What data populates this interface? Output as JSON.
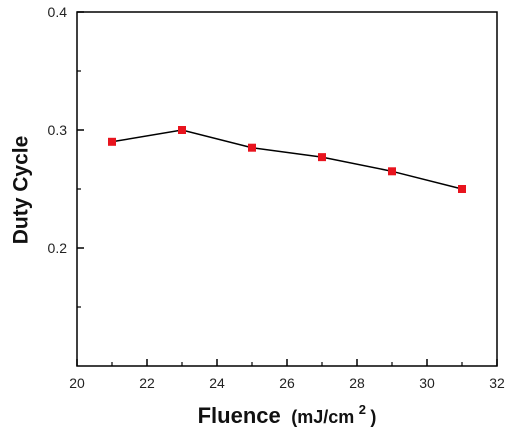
{
  "chart_data": {
    "type": "line",
    "title": "",
    "xlabel": "Fluence",
    "xlabel_unit": "(mJ/cm",
    "xlabel_unit_sup": "2",
    "xlabel_unit_close": ")",
    "ylabel": "Duty Cycle",
    "xlim": [
      20,
      32
    ],
    "ylim": [
      0.1,
      0.4
    ],
    "x_ticks": [
      20,
      22,
      24,
      26,
      28,
      30,
      32
    ],
    "x_tick_labels": [
      "20",
      "22",
      "24",
      "26",
      "28",
      "30",
      "32"
    ],
    "y_ticks": [
      0.2,
      0.3,
      0.4
    ],
    "y_tick_labels": [
      "0.2",
      "0.3",
      "0.4"
    ],
    "grid": false,
    "series": [
      {
        "x": [
          21,
          23,
          25,
          27,
          29,
          31
        ],
        "values": [
          0.29,
          0.3,
          0.285,
          0.277,
          0.265,
          0.25
        ]
      }
    ],
    "colors": {
      "marker": "#e8141e",
      "line": "#000000",
      "axis": "#000000"
    }
  }
}
